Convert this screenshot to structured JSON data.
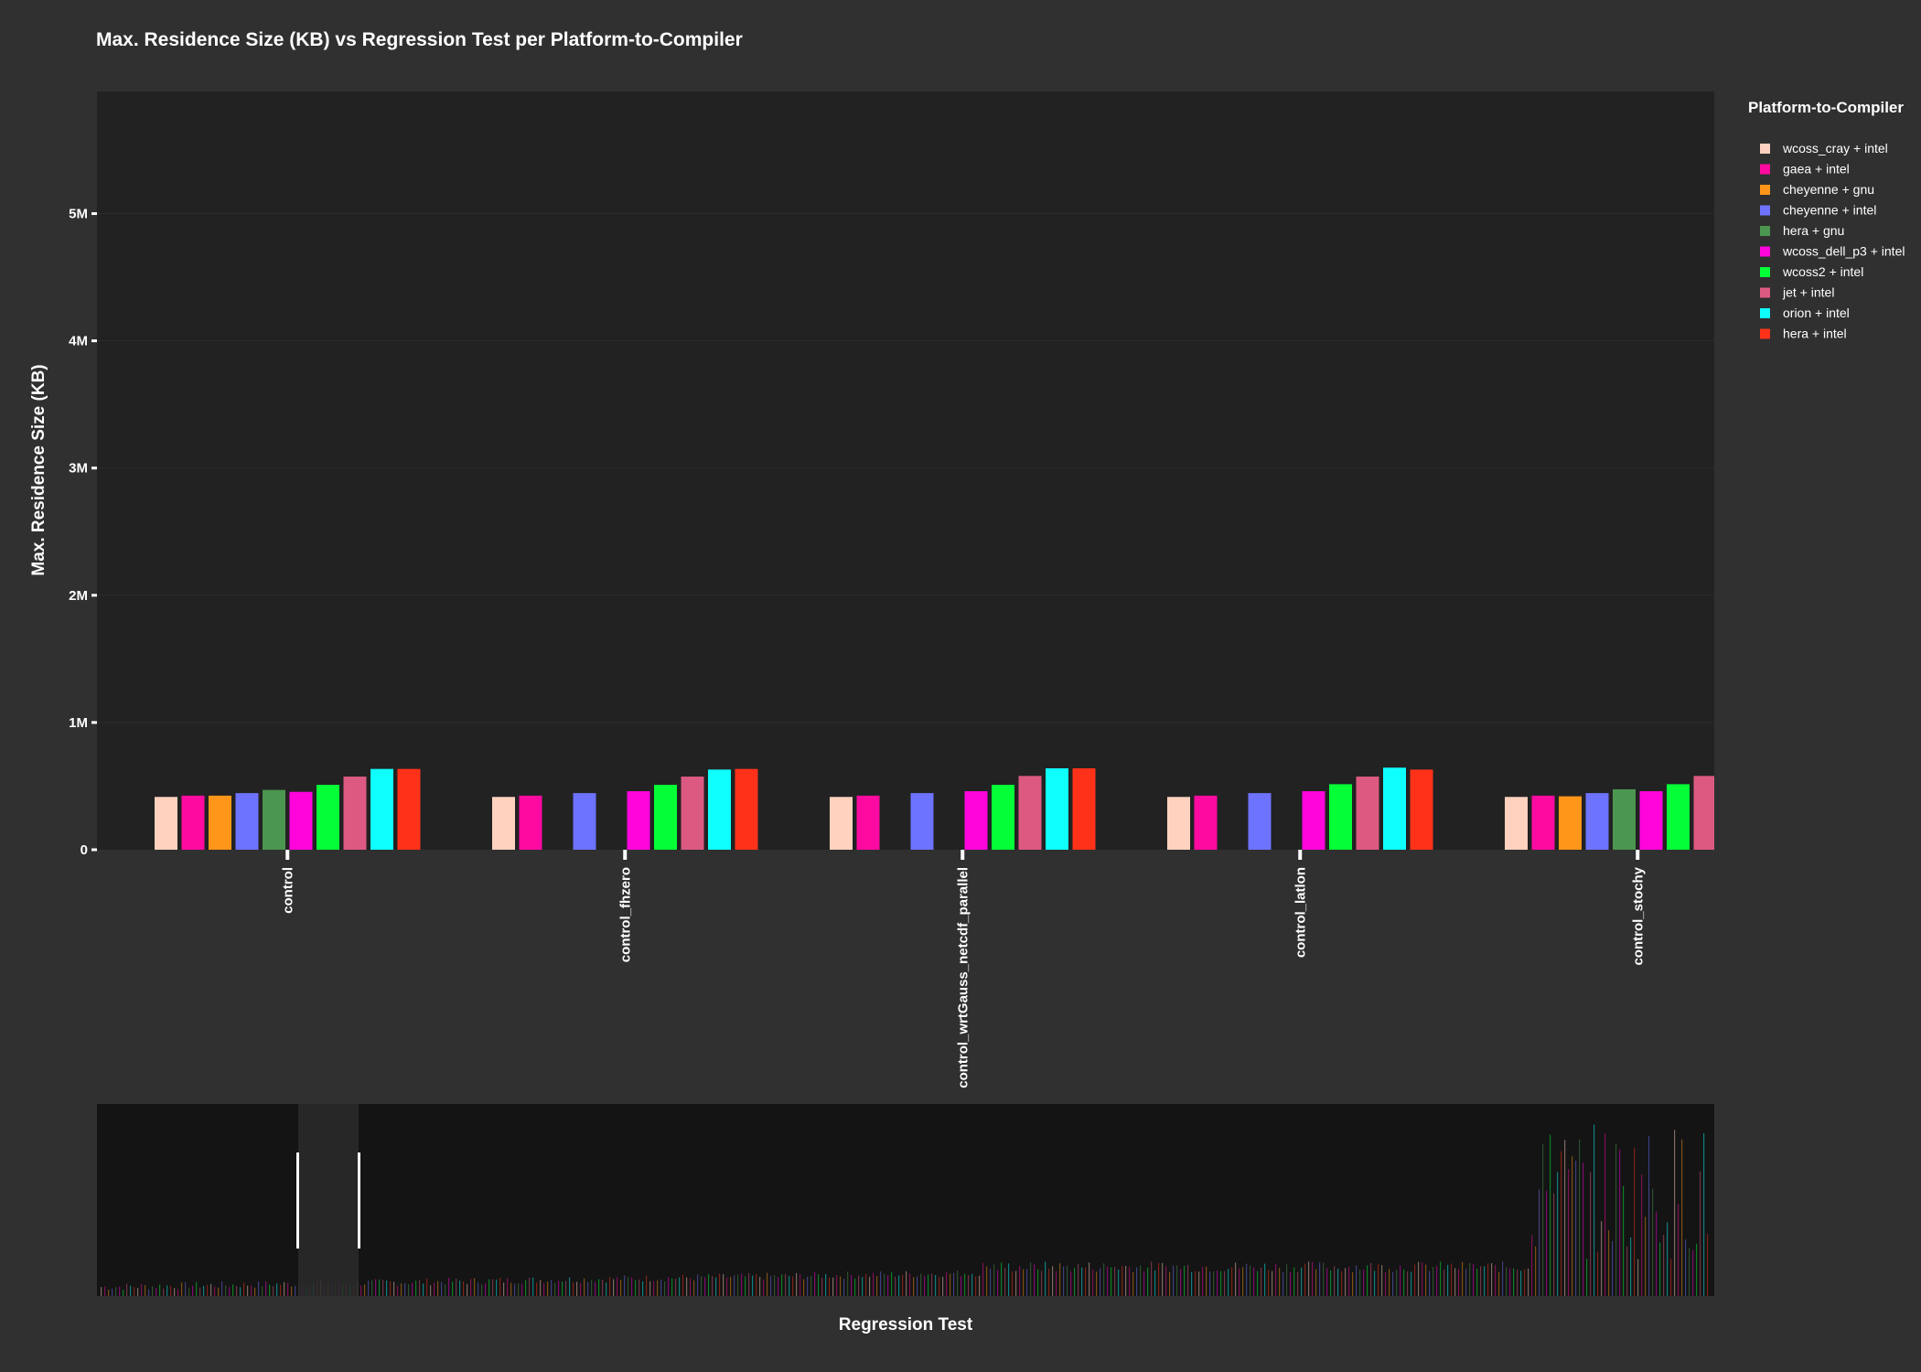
{
  "chart_data": {
    "type": "bar",
    "title": "Max. Residence Size (KB) vs Regression Test per Platform-to-Compiler",
    "xlabel": "Regression Test",
    "ylabel": "Max. Residence Size (KB)",
    "ylim": [
      0,
      5960000
    ],
    "yticks": [
      {
        "value": 0,
        "label": "0"
      },
      {
        "value": 1000000,
        "label": "1M"
      },
      {
        "value": 2000000,
        "label": "2M"
      },
      {
        "value": 3000000,
        "label": "3M"
      },
      {
        "value": 4000000,
        "label": "4M"
      },
      {
        "value": 5000000,
        "label": "5M"
      }
    ],
    "grid": true,
    "legend_position": "right",
    "legend_title": "Platform-to-Compiler",
    "categories": [
      "control",
      "control_fhzero",
      "control_wrtGauss_netcdf_parallel",
      "control_latlon",
      "control_stochy"
    ],
    "series": [
      {
        "name": "wcoss_cray + intel",
        "color": "#ffd2bf",
        "values": [
          415000,
          415000,
          415000,
          415000,
          415000
        ]
      },
      {
        "name": "gaea + intel",
        "color": "#ff0aa0",
        "values": [
          425000,
          425000,
          425000,
          425000,
          425000
        ]
      },
      {
        "name": "cheyenne + gnu",
        "color": "#ff9619",
        "values": [
          425000,
          null,
          null,
          null,
          420000
        ]
      },
      {
        "name": "cheyenne + intel",
        "color": "#6e73ff",
        "values": [
          445000,
          445000,
          445000,
          445000,
          445000
        ]
      },
      {
        "name": "hera + gnu",
        "color": "#4b9650",
        "values": [
          470000,
          null,
          null,
          null,
          475000
        ]
      },
      {
        "name": "wcoss_dell_p3 + intel",
        "color": "#ff05dc",
        "values": [
          455000,
          460000,
          460000,
          460000,
          460000
        ]
      },
      {
        "name": "wcoss2 + intel",
        "color": "#05ff37",
        "values": [
          510000,
          510000,
          510000,
          515000,
          515000
        ]
      },
      {
        "name": "jet + intel",
        "color": "#dc5a82",
        "values": [
          575000,
          575000,
          580000,
          575000,
          580000
        ]
      },
      {
        "name": "orion + intel",
        "color": "#0fffff",
        "values": [
          635000,
          630000,
          640000,
          645000,
          null
        ]
      },
      {
        "name": "hera + intel",
        "color": "#ff3219",
        "values": [
          635000,
          635000,
          640000,
          630000,
          null
        ]
      }
    ]
  }
}
